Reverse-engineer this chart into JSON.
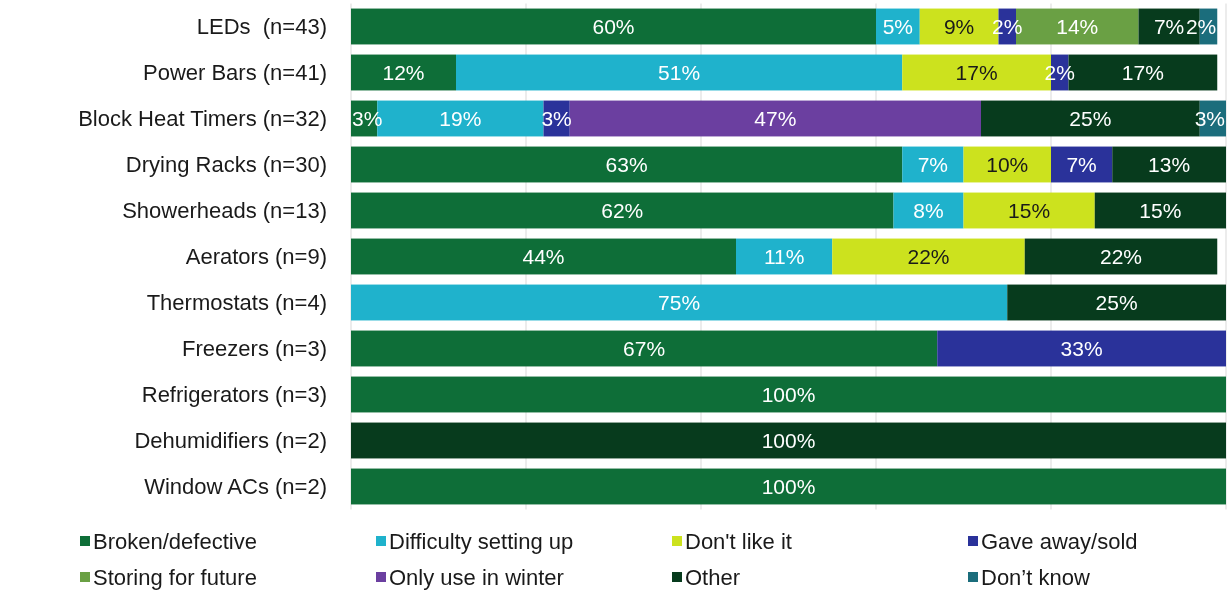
{
  "chart_data": {
    "type": "bar",
    "orientation": "horizontal",
    "stacked": true,
    "categories": [
      "LEDs  (n=43)",
      "Power Bars (n=41)",
      "Block Heat Timers (n=32)",
      "Drying Racks (n=30)",
      "Showerheads (n=13)",
      "Aerators (n=9)",
      "Thermostats (n=4)",
      "Freezers (n=3)",
      "Refrigerators (n=3)",
      "Dehumidifiers (n=2)",
      "Window ACs (n=2)"
    ],
    "series": [
      {
        "name": "Broken/defective",
        "color": "#0e6e38",
        "values": [
          60,
          12,
          3,
          63,
          62,
          44,
          null,
          67,
          100,
          null,
          100
        ],
        "value_labels": [
          "60%",
          "12%",
          "3%",
          "63%",
          "62%",
          "44%",
          null,
          "67%",
          "100%",
          null,
          "100%"
        ]
      },
      {
        "name": "Difficulty setting up",
        "color": "#1fb2cc",
        "values": [
          5,
          51,
          19,
          7,
          8,
          11,
          75,
          null,
          null,
          null,
          null
        ],
        "value_labels": [
          "5%",
          "51%",
          "19%",
          "7%",
          "8%",
          "11%",
          "75%",
          null,
          null,
          null,
          null
        ]
      },
      {
        "name": "Don't like it",
        "color": "#cce21e",
        "values": [
          9,
          17,
          null,
          10,
          15,
          22,
          null,
          null,
          null,
          null,
          null
        ],
        "value_labels": [
          "9%",
          "17%",
          null,
          "10%",
          "15%",
          "22%",
          null,
          null,
          null,
          null,
          null
        ]
      },
      {
        "name": "Gave away/sold",
        "color": "#2a329a",
        "values": [
          2,
          2,
          3,
          7,
          null,
          null,
          null,
          33,
          null,
          null,
          null
        ],
        "value_labels": [
          "2%",
          "2%",
          "3%",
          "7%",
          null,
          null,
          null,
          "33%",
          null,
          null,
          null
        ]
      },
      {
        "name": "Storing for future",
        "color": "#6aa044",
        "values": [
          14,
          null,
          null,
          null,
          null,
          null,
          null,
          null,
          null,
          null,
          null
        ],
        "value_labels": [
          "14%",
          null,
          null,
          null,
          null,
          null,
          null,
          null,
          null,
          null,
          null
        ]
      },
      {
        "name": "Only use in winter",
        "color": "#6b3fa0",
        "values": [
          null,
          null,
          47,
          null,
          null,
          null,
          null,
          null,
          null,
          null,
          null
        ],
        "value_labels": [
          null,
          null,
          "47%",
          null,
          null,
          null,
          null,
          null,
          null,
          null,
          null
        ]
      },
      {
        "name": "Other",
        "color": "#073b1d",
        "values": [
          7,
          17,
          25,
          13,
          15,
          22,
          25,
          null,
          null,
          100,
          null
        ],
        "value_labels": [
          "7%",
          "17%",
          "25%",
          "13%",
          "15%",
          "22%",
          "25%",
          null,
          null,
          "100%",
          null
        ]
      },
      {
        "name": "Don’t know",
        "color": "#1b6d7c",
        "values": [
          2,
          null,
          3,
          null,
          null,
          null,
          null,
          null,
          null,
          null,
          null
        ],
        "value_labels": [
          "2%",
          null,
          "3%",
          null,
          null,
          null,
          null,
          null,
          null,
          null,
          null
        ]
      }
    ],
    "xlim": [
      0,
      100
    ],
    "xticks": [
      {
        "value": 0,
        "label": null
      },
      {
        "value": 20,
        "label": null
      },
      {
        "value": 40,
        "label": null
      },
      {
        "value": 60,
        "label": null
      },
      {
        "value": 80,
        "label": null
      },
      {
        "value": 100,
        "label": null
      }
    ],
    "grid": "x",
    "tick_labels": "y",
    "legend": "bottom"
  }
}
